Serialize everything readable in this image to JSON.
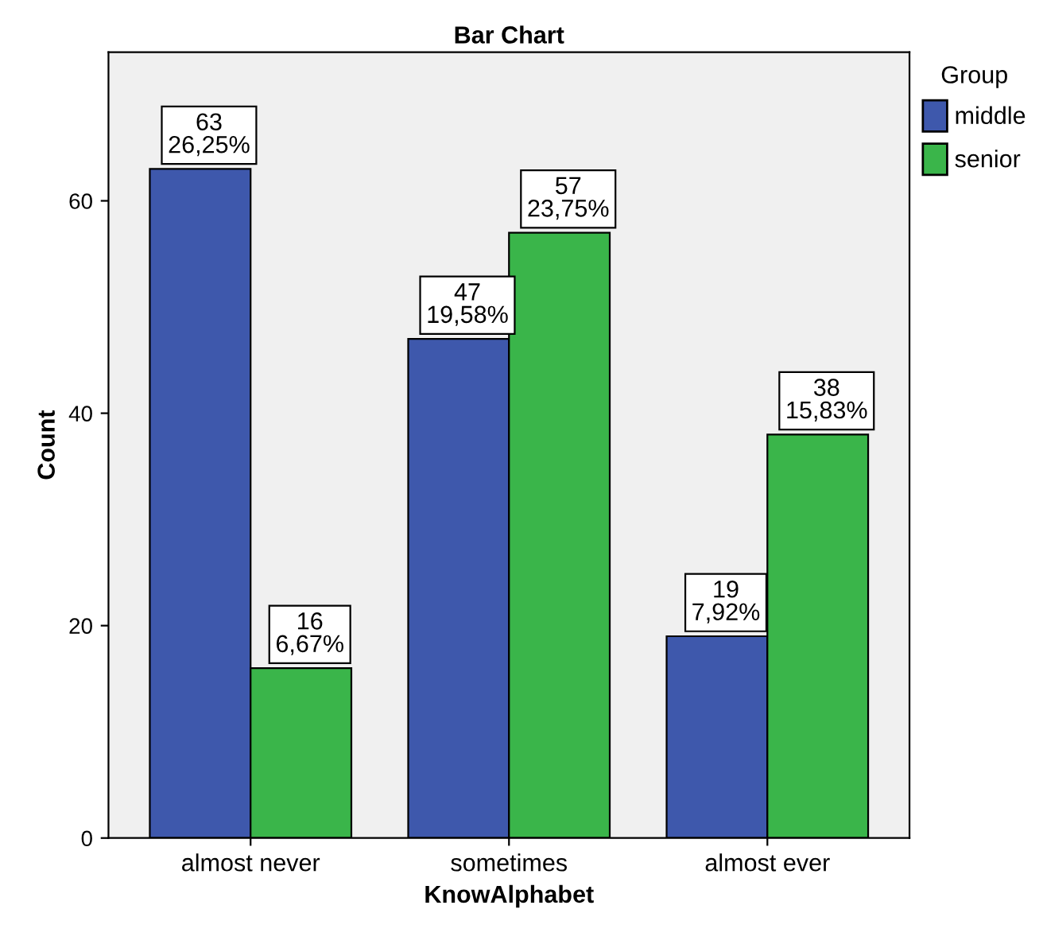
{
  "chart_data": {
    "type": "bar",
    "title": "Bar Chart",
    "xlabel": "KnowAlphabet",
    "ylabel": "Count",
    "legend_title": "Group",
    "legend": "top right",
    "grid": false,
    "categories": [
      "almost never",
      "sometimes",
      "almost ever"
    ],
    "series": [
      {
        "name": "middle",
        "color": "#3e58ac",
        "values": [
          63,
          47,
          19
        ],
        "value_labels": [
          "63\n26,25%",
          "47\n19,58%",
          "19\n7,92%"
        ]
      },
      {
        "name": "senior",
        "color": "#3ab54a",
        "values": [
          16,
          57,
          38
        ],
        "value_labels": [
          "16\n6,67%",
          "57\n23,75%",
          "38\n15,83%"
        ]
      }
    ],
    "ylim": [
      0,
      74
    ],
    "yticks": [
      0,
      20,
      40,
      60
    ]
  }
}
